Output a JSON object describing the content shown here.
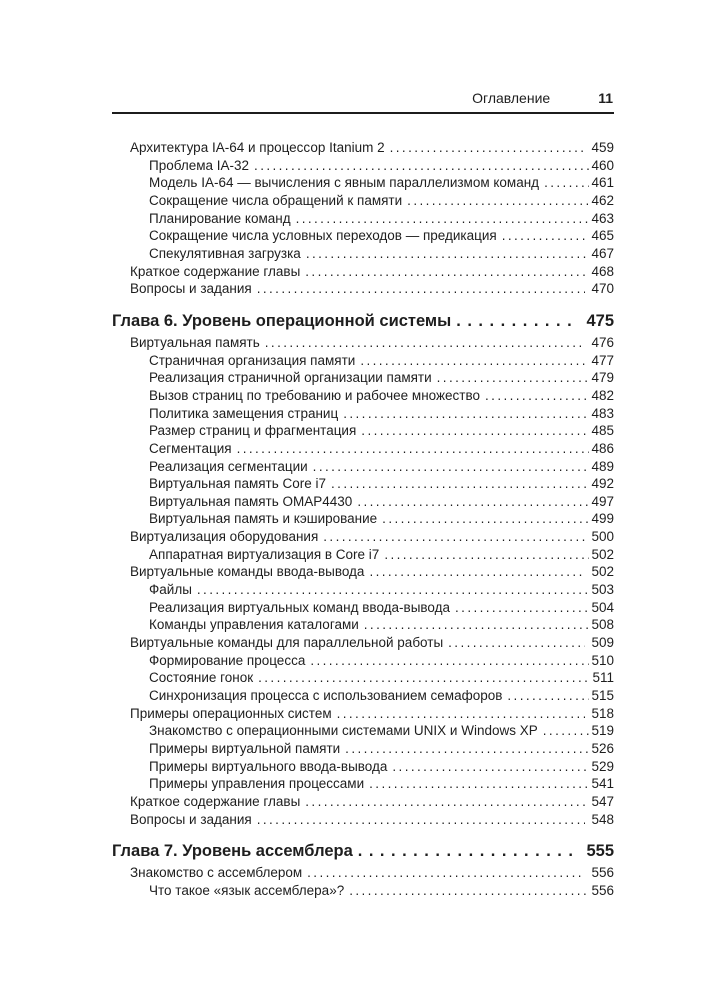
{
  "header": {
    "title": "Оглавление",
    "page_number": "11"
  },
  "toc": {
    "entries": [
      {
        "kind": "l1",
        "title": "Архитектура IA-64 и процессор Itanium 2",
        "page": "459"
      },
      {
        "kind": "l2",
        "title": "Проблема IA-32",
        "page": "460"
      },
      {
        "kind": "l2",
        "title": "Модель IA-64 — вычисления с явным параллелизмом команд",
        "page": "461"
      },
      {
        "kind": "l2",
        "title": "Сокращение числа обращений к памяти",
        "page": "462"
      },
      {
        "kind": "l2",
        "title": "Планирование команд",
        "page": "463"
      },
      {
        "kind": "l2",
        "title": "Сокращение числа условных переходов — предикация",
        "page": "465"
      },
      {
        "kind": "l2",
        "title": "Спекулятивная загрузка",
        "page": "467"
      },
      {
        "kind": "l1",
        "title": "Краткое содержание главы",
        "page": "468"
      },
      {
        "kind": "l1",
        "title": "Вопросы и задания",
        "page": "470"
      },
      {
        "kind": "chapter",
        "title": "Глава 6. Уровень операционной системы",
        "page": "475"
      },
      {
        "kind": "l1",
        "title": "Виртуальная память",
        "page": "476"
      },
      {
        "kind": "l2",
        "title": "Страничная организация памяти",
        "page": "477"
      },
      {
        "kind": "l2",
        "title": "Реализация страничной организации памяти",
        "page": "479"
      },
      {
        "kind": "l2",
        "title": "Вызов страниц по требованию и рабочее множество",
        "page": "482"
      },
      {
        "kind": "l2",
        "title": "Политика замещения страниц",
        "page": "483"
      },
      {
        "kind": "l2",
        "title": "Размер страниц и фрагментация",
        "page": "485"
      },
      {
        "kind": "l2",
        "title": "Сегментация",
        "page": "486"
      },
      {
        "kind": "l2",
        "title": "Реализация сегментации",
        "page": "489"
      },
      {
        "kind": "l2",
        "title": "Виртуальная память Core i7",
        "page": "492"
      },
      {
        "kind": "l2",
        "title": "Виртуальная память OMAP4430",
        "page": "497"
      },
      {
        "kind": "l2",
        "title": "Виртуальная память и кэширование",
        "page": "499"
      },
      {
        "kind": "l1",
        "title": "Виртуализация оборудования",
        "page": "500"
      },
      {
        "kind": "l2",
        "title": "Аппаратная виртуализация в Core i7",
        "page": "502"
      },
      {
        "kind": "l1",
        "title": "Виртуальные команды ввода-вывода",
        "page": "502"
      },
      {
        "kind": "l2",
        "title": "Файлы",
        "page": "503"
      },
      {
        "kind": "l2",
        "title": "Реализация виртуальных команд ввода-вывода",
        "page": "504"
      },
      {
        "kind": "l2",
        "title": "Команды управления каталогами",
        "page": "508"
      },
      {
        "kind": "l1",
        "title": "Виртуальные команды для параллельной работы",
        "page": "509"
      },
      {
        "kind": "l2",
        "title": "Формирование процесса",
        "page": "510"
      },
      {
        "kind": "l2",
        "title": "Состояние гонок",
        "page": "511"
      },
      {
        "kind": "l2",
        "title": "Синхронизация процесса с использованием семафоров",
        "page": "515"
      },
      {
        "kind": "l1",
        "title": "Примеры операционных систем",
        "page": "518"
      },
      {
        "kind": "l2",
        "title": "Знакомство с операционными системами UNIX и Windows XP",
        "page": "519"
      },
      {
        "kind": "l2",
        "title": "Примеры виртуальной памяти",
        "page": "526"
      },
      {
        "kind": "l2",
        "title": "Примеры виртуального ввода-вывода",
        "page": "529"
      },
      {
        "kind": "l2",
        "title": "Примеры управления процессами",
        "page": "541"
      },
      {
        "kind": "l1",
        "title": "Краткое содержание главы",
        "page": "547"
      },
      {
        "kind": "l1",
        "title": "Вопросы и задания",
        "page": "548"
      },
      {
        "kind": "chapter",
        "title": "Глава 7. Уровень ассемблера",
        "page": "555"
      },
      {
        "kind": "l1",
        "title": "Знакомство с ассемблером",
        "page": "556"
      },
      {
        "kind": "l2",
        "title": "Что такое «язык ассемблера»?",
        "page": "556"
      }
    ]
  }
}
